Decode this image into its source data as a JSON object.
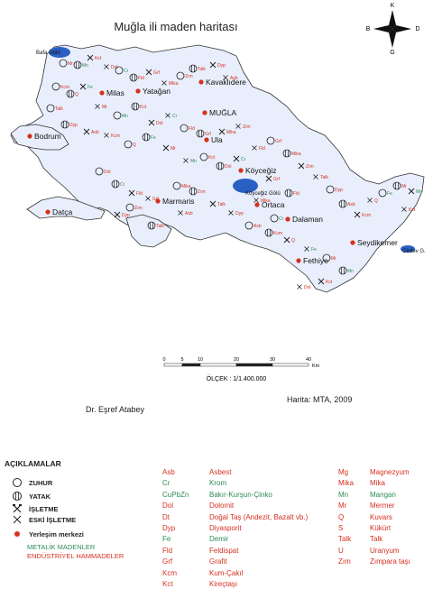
{
  "title": "Muğla ili maden haritası",
  "compass": {
    "n": "K",
    "s": "G",
    "e": "D",
    "w": "B"
  },
  "places": [
    {
      "name": "Bafa Gölü",
      "cls": "small"
    },
    {
      "name": "Milas",
      "cls": "big"
    },
    {
      "name": "Yatağan",
      "cls": "big"
    },
    {
      "name": "Kavaklıdere",
      "cls": "big"
    },
    {
      "name": "MUĞLA",
      "cls": "big"
    },
    {
      "name": "Bodrum",
      "cls": "big"
    },
    {
      "name": "Ula",
      "cls": "big"
    },
    {
      "name": "Köyceğiz",
      "cls": "big"
    },
    {
      "name": "Köyceğiz Gölü",
      "cls": "small"
    },
    {
      "name": "Marmaris",
      "cls": "big"
    },
    {
      "name": "Ortaca",
      "cls": "big"
    },
    {
      "name": "Datça",
      "cls": "big"
    },
    {
      "name": "Dalaman",
      "cls": "big"
    },
    {
      "name": "Fethiye",
      "cls": "big"
    },
    {
      "name": "Seydikemer",
      "cls": "big"
    },
    {
      "name": "Girdev G.",
      "cls": "small"
    }
  ],
  "scale": {
    "ticks": [
      "0",
      "5",
      "10",
      "20",
      "30",
      "40"
    ],
    "unit": "Km",
    "label": "ÖLÇEK : 1/1.400.000"
  },
  "credits": {
    "source": "Harita: MTA, 2009",
    "author": "Dr. Eşref Atabey"
  },
  "legend": {
    "title": "AÇIKLAMALAR",
    "symbols": [
      {
        "label": "ZUHUR",
        "icon": "open-circle-icon"
      },
      {
        "label": "YATAK",
        "icon": "hatched-circle-icon"
      },
      {
        "label": "İŞLETME",
        "icon": "crossed-hammers-icon"
      },
      {
        "label": "ESKİ İŞLETME",
        "icon": "cross-icon"
      },
      {
        "label": "Yerleşim merkezi",
        "icon": "red-dot-icon"
      }
    ],
    "categories": [
      {
        "label": "METALİK MADENLER",
        "color": "#2e8b57"
      },
      {
        "label": "ENDÜSTRİYEL HAMMADELER",
        "color": "#d6301f"
      }
    ],
    "col1": [
      {
        "abbr": "Asb",
        "name": "Asbest",
        "color": "#d6301f"
      },
      {
        "abbr": "Cr",
        "name": "Krom",
        "color": "#2e8b57"
      },
      {
        "abbr": "CuPbZn",
        "name": "Bakır-Kurşun-Çinko",
        "color": "#2e8b57"
      },
      {
        "abbr": "Dol",
        "name": "Dolomit",
        "color": "#d6301f"
      },
      {
        "abbr": "Dt",
        "name": "Doğal Taş (Andezit, Bazalt vb.)",
        "color": "#d6301f"
      },
      {
        "abbr": "Dyp",
        "name": "Diyasporit",
        "color": "#d6301f"
      },
      {
        "abbr": "Fe",
        "name": "Demir",
        "color": "#2e8b57"
      },
      {
        "abbr": "Fld",
        "name": "Feldispat",
        "color": "#d6301f"
      },
      {
        "abbr": "Grf",
        "name": "Grafit",
        "color": "#d6301f"
      },
      {
        "abbr": "Kcm",
        "name": "Kum-Çakıl",
        "color": "#d6301f"
      },
      {
        "abbr": "Kct",
        "name": "Kireçtaşı",
        "color": "#d6301f"
      }
    ],
    "col2": [
      {
        "abbr": "Mg",
        "name": "Magnezyum",
        "color": "#d6301f"
      },
      {
        "abbr": "Mika",
        "name": "Mika",
        "color": "#d6301f"
      },
      {
        "abbr": "Mn",
        "name": "Mangan",
        "color": "#2e8b57"
      },
      {
        "abbr": "Mr",
        "name": "Mermer",
        "color": "#d6301f"
      },
      {
        "abbr": "Q",
        "name": "Kuvars",
        "color": "#d6301f"
      },
      {
        "abbr": "S",
        "name": "Kükürt",
        "color": "#d6301f"
      },
      {
        "abbr": "Talk",
        "name": "Talk",
        "color": "#d6301f"
      },
      {
        "abbr": "U",
        "name": "Uranyum",
        "color": "#d6301f"
      },
      {
        "abbr": "Zım",
        "name": "Zımpara taşı",
        "color": "#d6301f"
      }
    ]
  },
  "map_labels": [
    {
      "t": "Mr",
      "c": "#d6301f"
    },
    {
      "t": "Mn",
      "c": "#2e8b57"
    },
    {
      "t": "Kct",
      "c": "#d6301f"
    },
    {
      "t": "Dol",
      "c": "#d6301f"
    },
    {
      "t": "Cr",
      "c": "#2e8b57"
    },
    {
      "t": "Fld",
      "c": "#d6301f"
    },
    {
      "t": "Grf",
      "c": "#d6301f"
    },
    {
      "t": "Mika",
      "c": "#d6301f"
    },
    {
      "t": "Zım",
      "c": "#d6301f"
    },
    {
      "t": "Talk",
      "c": "#d6301f"
    },
    {
      "t": "Dyp",
      "c": "#d6301f"
    },
    {
      "t": "Asb",
      "c": "#d6301f"
    },
    {
      "t": "Kcm",
      "c": "#d6301f"
    },
    {
      "t": "Q",
      "c": "#d6301f"
    },
    {
      "t": "Fe",
      "c": "#2e8b57"
    }
  ],
  "colors": {
    "land": "#e8eefb",
    "lake": "#2a5fc4",
    "outline": "#333333",
    "settlement": "#d6301f"
  }
}
